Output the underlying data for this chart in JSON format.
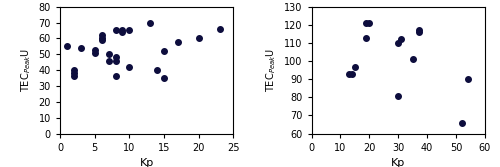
{
  "left": {
    "kp": [
      1,
      2,
      2,
      2,
      3,
      5,
      5,
      6,
      6,
      6,
      7,
      7,
      8,
      8,
      8,
      8,
      9,
      9,
      10,
      10,
      13,
      14,
      15,
      15,
      17,
      20,
      23
    ],
    "tec": [
      55,
      36,
      38,
      40,
      54,
      53,
      51,
      60,
      59,
      62,
      50,
      46,
      36,
      46,
      48,
      65,
      64,
      65,
      42,
      65,
      70,
      40,
      35,
      52,
      58,
      60,
      66
    ],
    "xlim": [
      0,
      25
    ],
    "ylim": [
      0,
      80
    ],
    "xticks": [
      0,
      5,
      10,
      15,
      20,
      25
    ],
    "yticks": [
      0,
      10,
      20,
      30,
      40,
      50,
      60,
      70,
      80
    ]
  },
  "right": {
    "kp": [
      13,
      14,
      15,
      19,
      19,
      20,
      30,
      30,
      31,
      35,
      37,
      37,
      52,
      54
    ],
    "tec": [
      93,
      93,
      97,
      113,
      121,
      121,
      81,
      110,
      112,
      101,
      116,
      117,
      66,
      90
    ],
    "xlim": [
      0,
      60
    ],
    "ylim": [
      60,
      130
    ],
    "xticks": [
      0,
      10,
      20,
      30,
      40,
      50,
      60
    ],
    "yticks": [
      60,
      70,
      80,
      90,
      100,
      110,
      120,
      130
    ]
  },
  "marker": "o",
  "marker_size": 16,
  "marker_color": "#0d0d3d",
  "ylabel": "TEC$_{Peak}$U",
  "xlabel": "Kp",
  "bg_color": "#ffffff"
}
